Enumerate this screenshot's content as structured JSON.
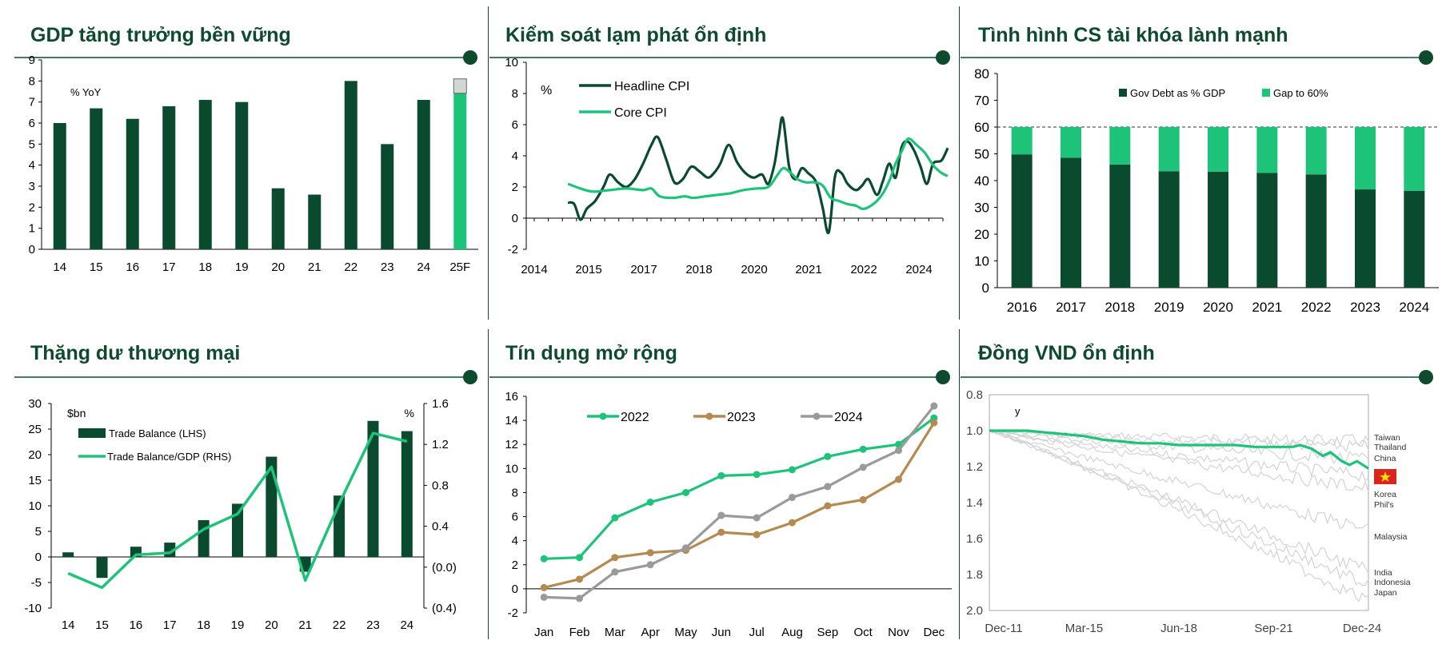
{
  "colors": {
    "dark": "#0a4a2e",
    "light": "#1ec37a",
    "tan": "#b48a50",
    "gray": "#9a9a9a",
    "line": "#0d4a2e"
  },
  "panels": {
    "gdp": {
      "title": "GDP tăng trưởng bền vững"
    },
    "cpi": {
      "title": "Kiểm soát lạm phát ổn định"
    },
    "fiscal": {
      "title": "Tình hình CS tài khóa lành mạnh"
    },
    "trade": {
      "title": "Thặng dư thương mại"
    },
    "credit": {
      "title": "Tín dụng mở rộng"
    },
    "vnd": {
      "title": "Đồng VND ổn định"
    }
  },
  "chart_data": [
    {
      "id": "gdp",
      "type": "bar",
      "title": "GDP tăng trưởng bền vững",
      "unit_label": "% YoY",
      "categories": [
        "14",
        "15",
        "16",
        "17",
        "18",
        "19",
        "20",
        "21",
        "22",
        "23",
        "24",
        "25F"
      ],
      "values": [
        6.0,
        6.7,
        6.2,
        6.8,
        7.1,
        7.0,
        2.9,
        2.6,
        8.0,
        5.0,
        7.1,
        8.1
      ],
      "highlight_last": true,
      "ylim": [
        0,
        9
      ],
      "yticks": [
        "0",
        "1",
        "2",
        "3",
        "4",
        "5",
        "6",
        "7",
        "8",
        "9"
      ]
    },
    {
      "id": "cpi",
      "type": "line",
      "title": "Kiểm soát lạm phát ổn định",
      "unit_label": "%",
      "xlim": [
        2014,
        2024.1
      ],
      "xticks": [
        "2014",
        "2015",
        "2017",
        "2018",
        "2020",
        "2021",
        "2022",
        "2024"
      ],
      "ylim": [
        -2,
        10
      ],
      "yticks": [
        "-2",
        "0",
        "2",
        "4",
        "6",
        "8",
        "10"
      ],
      "series": [
        {
          "name": "Headline CPI",
          "x": [
            2015.0,
            2015.15,
            2015.3,
            2015.45,
            2015.65,
            2015.85,
            2016.0,
            2016.2,
            2016.4,
            2016.6,
            2016.8,
            2017.0,
            2017.15,
            2017.35,
            2017.55,
            2017.75,
            2017.95,
            2018.15,
            2018.35,
            2018.5,
            2018.65,
            2018.85,
            2019.05,
            2019.25,
            2019.45,
            2019.65,
            2019.8,
            2019.95,
            2020.05,
            2020.15,
            2020.3,
            2020.45,
            2020.6,
            2020.75,
            2020.95,
            2021.1,
            2021.25,
            2021.4,
            2021.55,
            2021.7,
            2021.9,
            2022.05,
            2022.2,
            2022.4,
            2022.55,
            2022.7,
            2022.85,
            2023.0,
            2023.15,
            2023.3,
            2023.45,
            2023.6,
            2023.75,
            2023.95,
            2024.1
          ],
          "values": [
            1.0,
            0.9,
            -0.1,
            0.6,
            1.1,
            2.0,
            2.8,
            2.3,
            2.0,
            2.5,
            3.5,
            4.7,
            5.2,
            3.8,
            2.3,
            2.5,
            3.3,
            3.0,
            2.6,
            2.9,
            3.5,
            4.7,
            3.6,
            2.9,
            2.6,
            2.8,
            2.2,
            3.5,
            5.2,
            6.4,
            3.3,
            2.5,
            3.2,
            2.9,
            2.3,
            0.7,
            -0.9,
            2.7,
            2.9,
            2.2,
            1.8,
            2.1,
            2.5,
            1.5,
            2.4,
            3.5,
            2.6,
            4.6,
            4.9,
            4.3,
            3.3,
            2.2,
            3.5,
            3.7,
            4.5
          ]
        },
        {
          "name": "Core CPI",
          "x": [
            2015.0,
            2015.3,
            2015.6,
            2016.0,
            2016.4,
            2016.8,
            2017.0,
            2017.2,
            2017.5,
            2017.8,
            2018.0,
            2018.3,
            2018.6,
            2018.9,
            2019.2,
            2019.5,
            2019.8,
            2020.0,
            2020.15,
            2020.3,
            2020.5,
            2020.7,
            2020.9,
            2021.1,
            2021.3,
            2021.5,
            2021.7,
            2021.9,
            2022.05,
            2022.2,
            2022.4,
            2022.55,
            2022.7,
            2022.85,
            2023.0,
            2023.15,
            2023.35,
            2023.55,
            2023.75,
            2023.95,
            2024.1
          ],
          "values": [
            2.2,
            1.9,
            1.7,
            1.8,
            1.9,
            1.8,
            1.9,
            1.4,
            1.3,
            1.4,
            1.3,
            1.4,
            1.5,
            1.6,
            1.8,
            1.9,
            2.0,
            2.7,
            3.2,
            3.0,
            2.5,
            2.3,
            2.3,
            2.1,
            1.3,
            1.1,
            0.9,
            0.8,
            0.6,
            0.7,
            1.1,
            1.6,
            2.4,
            3.5,
            4.3,
            5.1,
            4.7,
            4.2,
            3.4,
            2.9,
            2.7
          ]
        }
      ]
    },
    {
      "id": "fiscal",
      "type": "bar",
      "stacked": true,
      "title": "Tình hình CS tài khóa lành mạnh",
      "categories": [
        "2016",
        "2017",
        "2018",
        "2019",
        "2020",
        "2021",
        "2022",
        "2023",
        "2024"
      ],
      "series": [
        {
          "name": "Gov Debt as % GDP",
          "values": [
            49.8,
            48.5,
            46.0,
            43.5,
            43.3,
            42.9,
            42.3,
            36.7,
            36.2
          ]
        },
        {
          "name": "Gap to 60%",
          "values": [
            10.2,
            11.5,
            14.0,
            16.5,
            16.7,
            17.1,
            17.7,
            23.3,
            23.8
          ]
        }
      ],
      "reference_line": 60,
      "ylim": [
        0,
        80
      ],
      "yticks": [
        "0",
        "10",
        "20",
        "30",
        "40",
        "50",
        "60",
        "70",
        "80"
      ]
    },
    {
      "id": "trade",
      "type": "bar+line",
      "title": "Thặng dư thương mại",
      "left_unit": "$bn",
      "right_unit": "%",
      "categories": [
        "14",
        "15",
        "16",
        "17",
        "18",
        "19",
        "20",
        "21",
        "22",
        "23",
        "24"
      ],
      "series": [
        {
          "name": "Trade Balance (LHS)",
          "type": "bar",
          "axis": "left",
          "values": [
            0.9,
            -4.1,
            2.0,
            2.8,
            7.2,
            10.4,
            19.6,
            -2.9,
            12.0,
            26.6,
            24.6
          ]
        },
        {
          "name": "Trade Balance/GDP (RHS)",
          "type": "line",
          "axis": "right",
          "values": [
            -0.06,
            -0.2,
            0.12,
            0.14,
            0.37,
            0.52,
            0.98,
            -0.13,
            0.62,
            1.31,
            1.23
          ]
        }
      ],
      "ylim_left": [
        -10,
        30
      ],
      "yticks_left": [
        "-10",
        "-5",
        "0",
        "5",
        "10",
        "15",
        "20",
        "25",
        "30"
      ],
      "ylim_right": [
        -0.4,
        1.6
      ],
      "yticks_right": [
        "(0.4)",
        "(0.0)",
        "0.4",
        "0.8",
        "1.2",
        "1.6"
      ]
    },
    {
      "id": "credit",
      "type": "line",
      "title": "Tín dụng mở rộng",
      "categories": [
        "Jan",
        "Feb",
        "Mar",
        "Apr",
        "May",
        "Jun",
        "Jul",
        "Aug",
        "Sep",
        "Oct",
        "Nov",
        "Dec"
      ],
      "ylim": [
        -2,
        16
      ],
      "yticks": [
        "-2",
        "0",
        "2",
        "4",
        "6",
        "8",
        "10",
        "12",
        "14",
        "16"
      ],
      "series": [
        {
          "name": "2022",
          "values": [
            2.5,
            2.6,
            5.9,
            7.2,
            8.0,
            9.4,
            9.5,
            9.9,
            11.0,
            11.6,
            12.0,
            14.2
          ]
        },
        {
          "name": "2023",
          "values": [
            0.1,
            0.8,
            2.6,
            3.0,
            3.2,
            4.7,
            4.5,
            5.5,
            6.9,
            7.4,
            9.1,
            13.8
          ]
        },
        {
          "name": "2024",
          "values": [
            -0.7,
            -0.8,
            1.4,
            2.0,
            3.4,
            6.1,
            5.9,
            7.6,
            8.5,
            10.1,
            11.5,
            15.2
          ]
        }
      ]
    },
    {
      "id": "vnd",
      "type": "line",
      "title": "Đồng VND ổn định",
      "axis_label": "y",
      "xticks": [
        "Dec-11",
        "Mar-15",
        "Jun-18",
        "Sep-21",
        "Dec-24"
      ],
      "ylim": [
        0.8,
        2.0
      ],
      "y_inverted": true,
      "yticks": [
        "0.8",
        "1.0",
        "1.2",
        "1.4",
        "1.6",
        "1.8",
        "2.0"
      ],
      "highlight_series": {
        "name": "VND",
        "x": [
          0,
          0.05,
          0.1,
          0.15,
          0.2,
          0.25,
          0.3,
          0.35,
          0.4,
          0.45,
          0.5,
          0.55,
          0.6,
          0.65,
          0.7,
          0.75,
          0.8,
          0.82,
          0.85,
          0.88,
          0.9,
          0.93,
          0.95,
          0.97,
          1.0
        ],
        "values": [
          1.0,
          1.0,
          1.0,
          1.01,
          1.02,
          1.03,
          1.05,
          1.06,
          1.07,
          1.07,
          1.08,
          1.08,
          1.08,
          1.08,
          1.09,
          1.09,
          1.09,
          1.08,
          1.1,
          1.14,
          1.12,
          1.17,
          1.19,
          1.17,
          1.21
        ]
      },
      "other_series_labels": [
        "Taiwan",
        "Thailand",
        "China",
        "Korea",
        "Phil's",
        "Malaysia",
        "India",
        "Indonesia",
        "Japan"
      ]
    }
  ]
}
